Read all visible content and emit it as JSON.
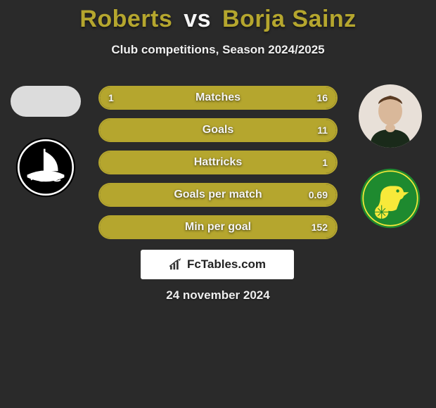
{
  "background_color": "#2a2a2a",
  "header": {
    "player1_name": "Roberts",
    "vs_text": "vs",
    "player2_name": "Borja Sainz",
    "player1_color": "#b5a62e",
    "player2_color": "#b5a62e",
    "subtitle": "Club competitions, Season 2024/2025"
  },
  "player1": {
    "club_badge_bg": "#000000",
    "club_badge_fg": "#ffffff"
  },
  "player2": {
    "avatar_bg": "#e8e0d8",
    "club_badge_bg": "#1e8a2f",
    "club_badge_accent": "#f7e93a"
  },
  "stats": {
    "border_color": "#b5a62e",
    "fill_left_color": "#b5a62e",
    "fill_right_color": "#b5a62e",
    "rows": [
      {
        "label": "Matches",
        "left_val": "1",
        "right_val": "16",
        "left_pct": 6,
        "right_pct": 94
      },
      {
        "label": "Goals",
        "left_val": "",
        "right_val": "11",
        "left_pct": 0,
        "right_pct": 100
      },
      {
        "label": "Hattricks",
        "left_val": "",
        "right_val": "1",
        "left_pct": 0,
        "right_pct": 100
      },
      {
        "label": "Goals per match",
        "left_val": "",
        "right_val": "0.69",
        "left_pct": 0,
        "right_pct": 100
      },
      {
        "label": "Min per goal",
        "left_val": "",
        "right_val": "152",
        "left_pct": 0,
        "right_pct": 100
      }
    ]
  },
  "brand": {
    "text": "FcTables.com"
  },
  "date": "24 november 2024"
}
